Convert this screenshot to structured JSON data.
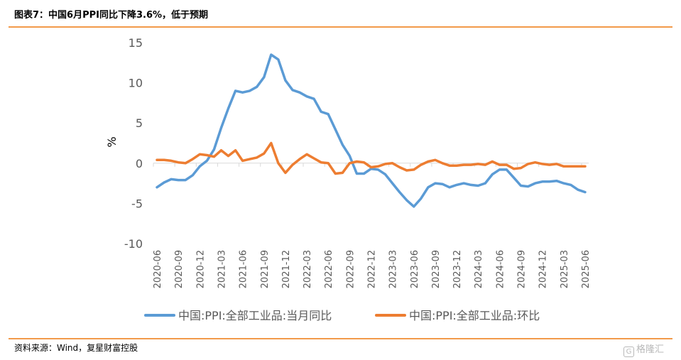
{
  "title": "图表7：中国6月PPI同比下降3.6%，低于预期",
  "source": "资料来源：Wind，复星财富控股",
  "logo": {
    "mark": "G",
    "text": "格隆汇"
  },
  "colors": {
    "accent": "#f29a4a",
    "series_yoy": "#5b9bd5",
    "series_mom": "#ed7d31"
  },
  "chart_data": {
    "type": "line",
    "ylabel": "%",
    "ylim": [
      -10,
      15
    ],
    "yticks": [
      15,
      10,
      5,
      0,
      -5,
      -10
    ],
    "grid": false,
    "legend_placement": "bottom",
    "xtick_labels": [
      "2020-06",
      "2020-09",
      "2020-12",
      "2021-03",
      "2021-06",
      "2021-09",
      "2021-12",
      "2022-03",
      "2022-06",
      "2022-09",
      "2022-12",
      "2023-03",
      "2023-06",
      "2023-09",
      "2023-12",
      "2024-03",
      "2024-06",
      "2024-09",
      "2024-12",
      "2025-03",
      "2025-06"
    ],
    "x": [
      "2020-06",
      "2020-07",
      "2020-08",
      "2020-09",
      "2020-10",
      "2020-11",
      "2020-12",
      "2021-01",
      "2021-02",
      "2021-03",
      "2021-04",
      "2021-05",
      "2021-06",
      "2021-07",
      "2021-08",
      "2021-09",
      "2021-10",
      "2021-11",
      "2021-12",
      "2022-01",
      "2022-02",
      "2022-03",
      "2022-04",
      "2022-05",
      "2022-06",
      "2022-07",
      "2022-08",
      "2022-09",
      "2022-10",
      "2022-11",
      "2022-12",
      "2023-01",
      "2023-02",
      "2023-03",
      "2023-04",
      "2023-05",
      "2023-06",
      "2023-07",
      "2023-08",
      "2023-09",
      "2023-10",
      "2023-11",
      "2023-12",
      "2024-01",
      "2024-02",
      "2024-03",
      "2024-04",
      "2024-05",
      "2024-06",
      "2024-07",
      "2024-08",
      "2024-09",
      "2024-10",
      "2024-11",
      "2024-12",
      "2025-01",
      "2025-02",
      "2025-03",
      "2025-04",
      "2025-05",
      "2025-06"
    ],
    "series": [
      {
        "name": "中国:PPI:全部工业品:当月同比",
        "values": [
          -3.0,
          -2.4,
          -2.0,
          -2.1,
          -2.1,
          -1.5,
          -0.4,
          0.3,
          1.7,
          4.4,
          6.8,
          9.0,
          8.8,
          9.0,
          9.5,
          10.7,
          13.5,
          12.9,
          10.3,
          9.1,
          8.8,
          8.3,
          8.0,
          6.4,
          6.1,
          4.2,
          2.3,
          0.9,
          -1.3,
          -1.3,
          -0.7,
          -0.8,
          -1.4,
          -2.5,
          -3.6,
          -4.6,
          -5.4,
          -4.4,
          -3.0,
          -2.5,
          -2.6,
          -3.0,
          -2.7,
          -2.5,
          -2.7,
          -2.8,
          -2.5,
          -1.4,
          -0.8,
          -0.8,
          -1.8,
          -2.8,
          -2.9,
          -2.5,
          -2.3,
          -2.3,
          -2.2,
          -2.5,
          -2.7,
          -3.3,
          -3.6
        ]
      },
      {
        "name": "中国:PPI:全部工业品:环比",
        "values": [
          0.4,
          0.4,
          0.3,
          0.1,
          0.0,
          0.5,
          1.1,
          1.0,
          0.8,
          1.6,
          0.9,
          1.6,
          0.3,
          0.5,
          0.7,
          1.2,
          2.5,
          0.0,
          -1.2,
          -0.2,
          0.5,
          1.1,
          0.6,
          0.1,
          0.0,
          -1.3,
          -1.2,
          0.0,
          0.2,
          0.1,
          -0.5,
          -0.4,
          -0.1,
          0.0,
          -0.5,
          -0.9,
          -0.8,
          -0.2,
          0.2,
          0.4,
          0.0,
          -0.3,
          -0.3,
          -0.2,
          -0.2,
          -0.1,
          -0.2,
          0.2,
          -0.2,
          -0.2,
          -0.7,
          -0.6,
          -0.1,
          0.1,
          -0.1,
          -0.2,
          -0.1,
          -0.4,
          -0.4,
          -0.4,
          -0.4
        ]
      }
    ]
  }
}
